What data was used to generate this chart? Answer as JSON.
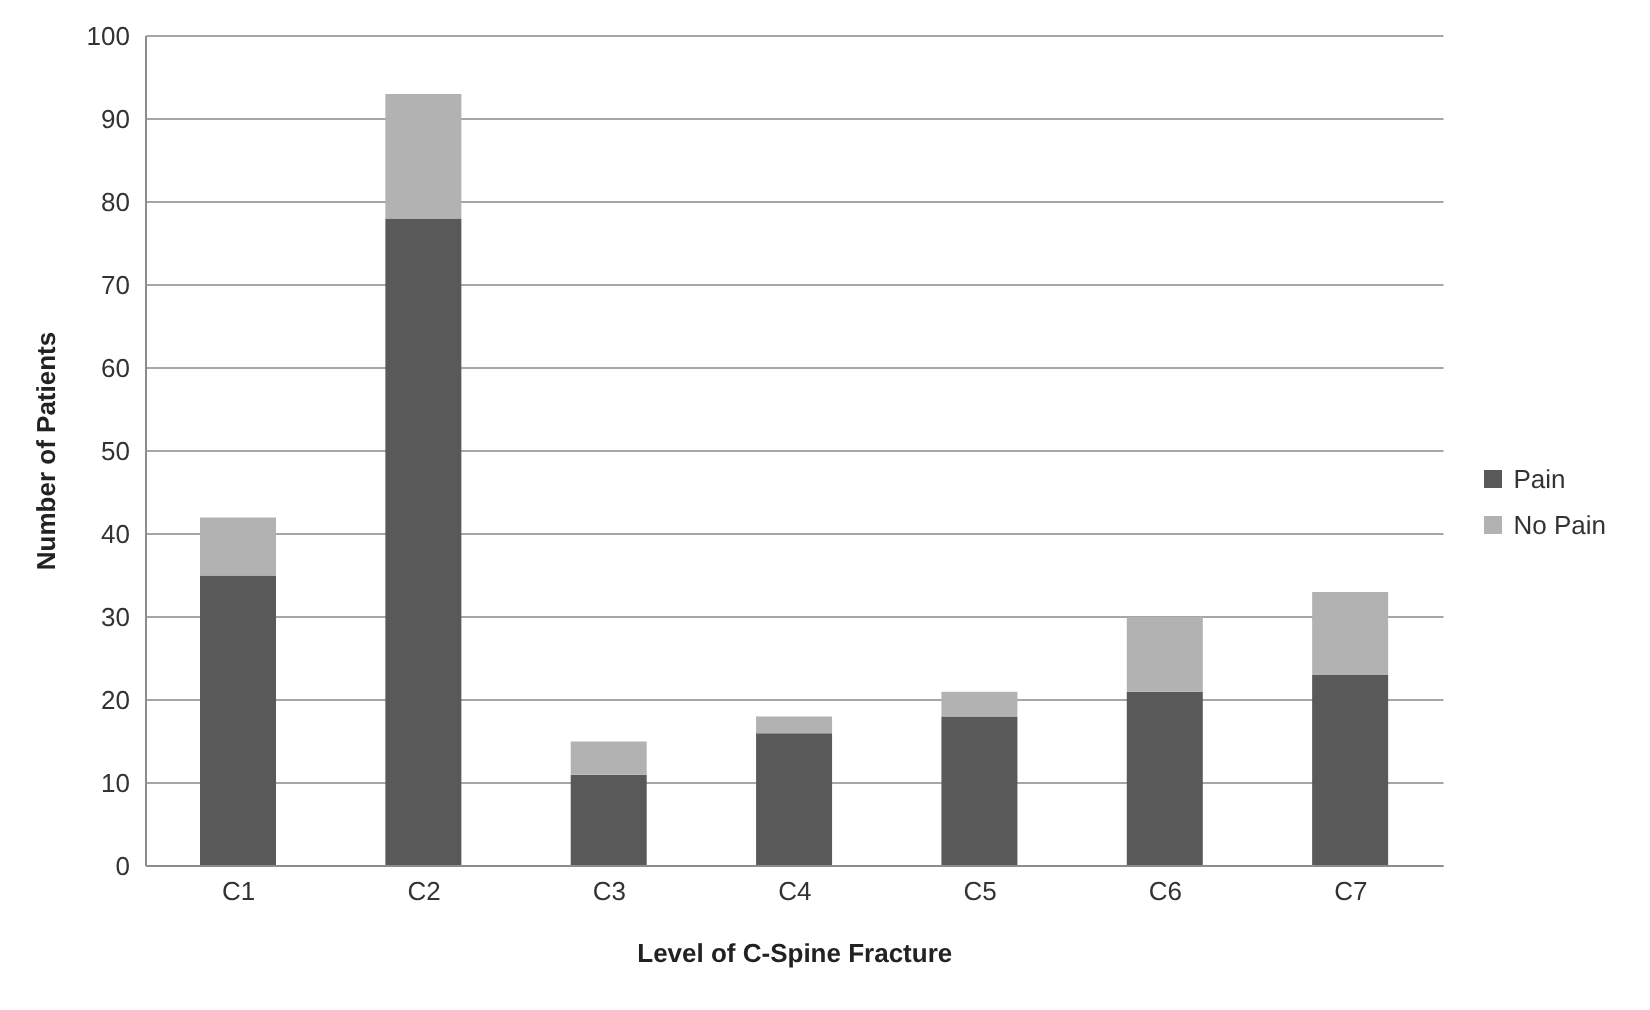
{
  "chart_data": {
    "type": "bar",
    "stacked": true,
    "xlabel": "Level of C-Spine Fracture",
    "ylabel": "Number of Patients",
    "categories": [
      "C1",
      "C2",
      "C3",
      "C4",
      "C5",
      "C6",
      "C7"
    ],
    "series": [
      {
        "name": "Pain",
        "color": "#595959",
        "values": [
          35,
          78,
          11,
          16,
          18,
          21,
          23
        ]
      },
      {
        "name": "No Pain",
        "color": "#b2b2b2",
        "values": [
          7,
          15,
          4,
          2,
          3,
          9,
          10
        ]
      }
    ],
    "ylim": [
      0,
      100
    ],
    "yticks": [
      0,
      10,
      20,
      30,
      40,
      50,
      60,
      70,
      80,
      90,
      100
    ],
    "grid": "y",
    "legend": "right"
  }
}
